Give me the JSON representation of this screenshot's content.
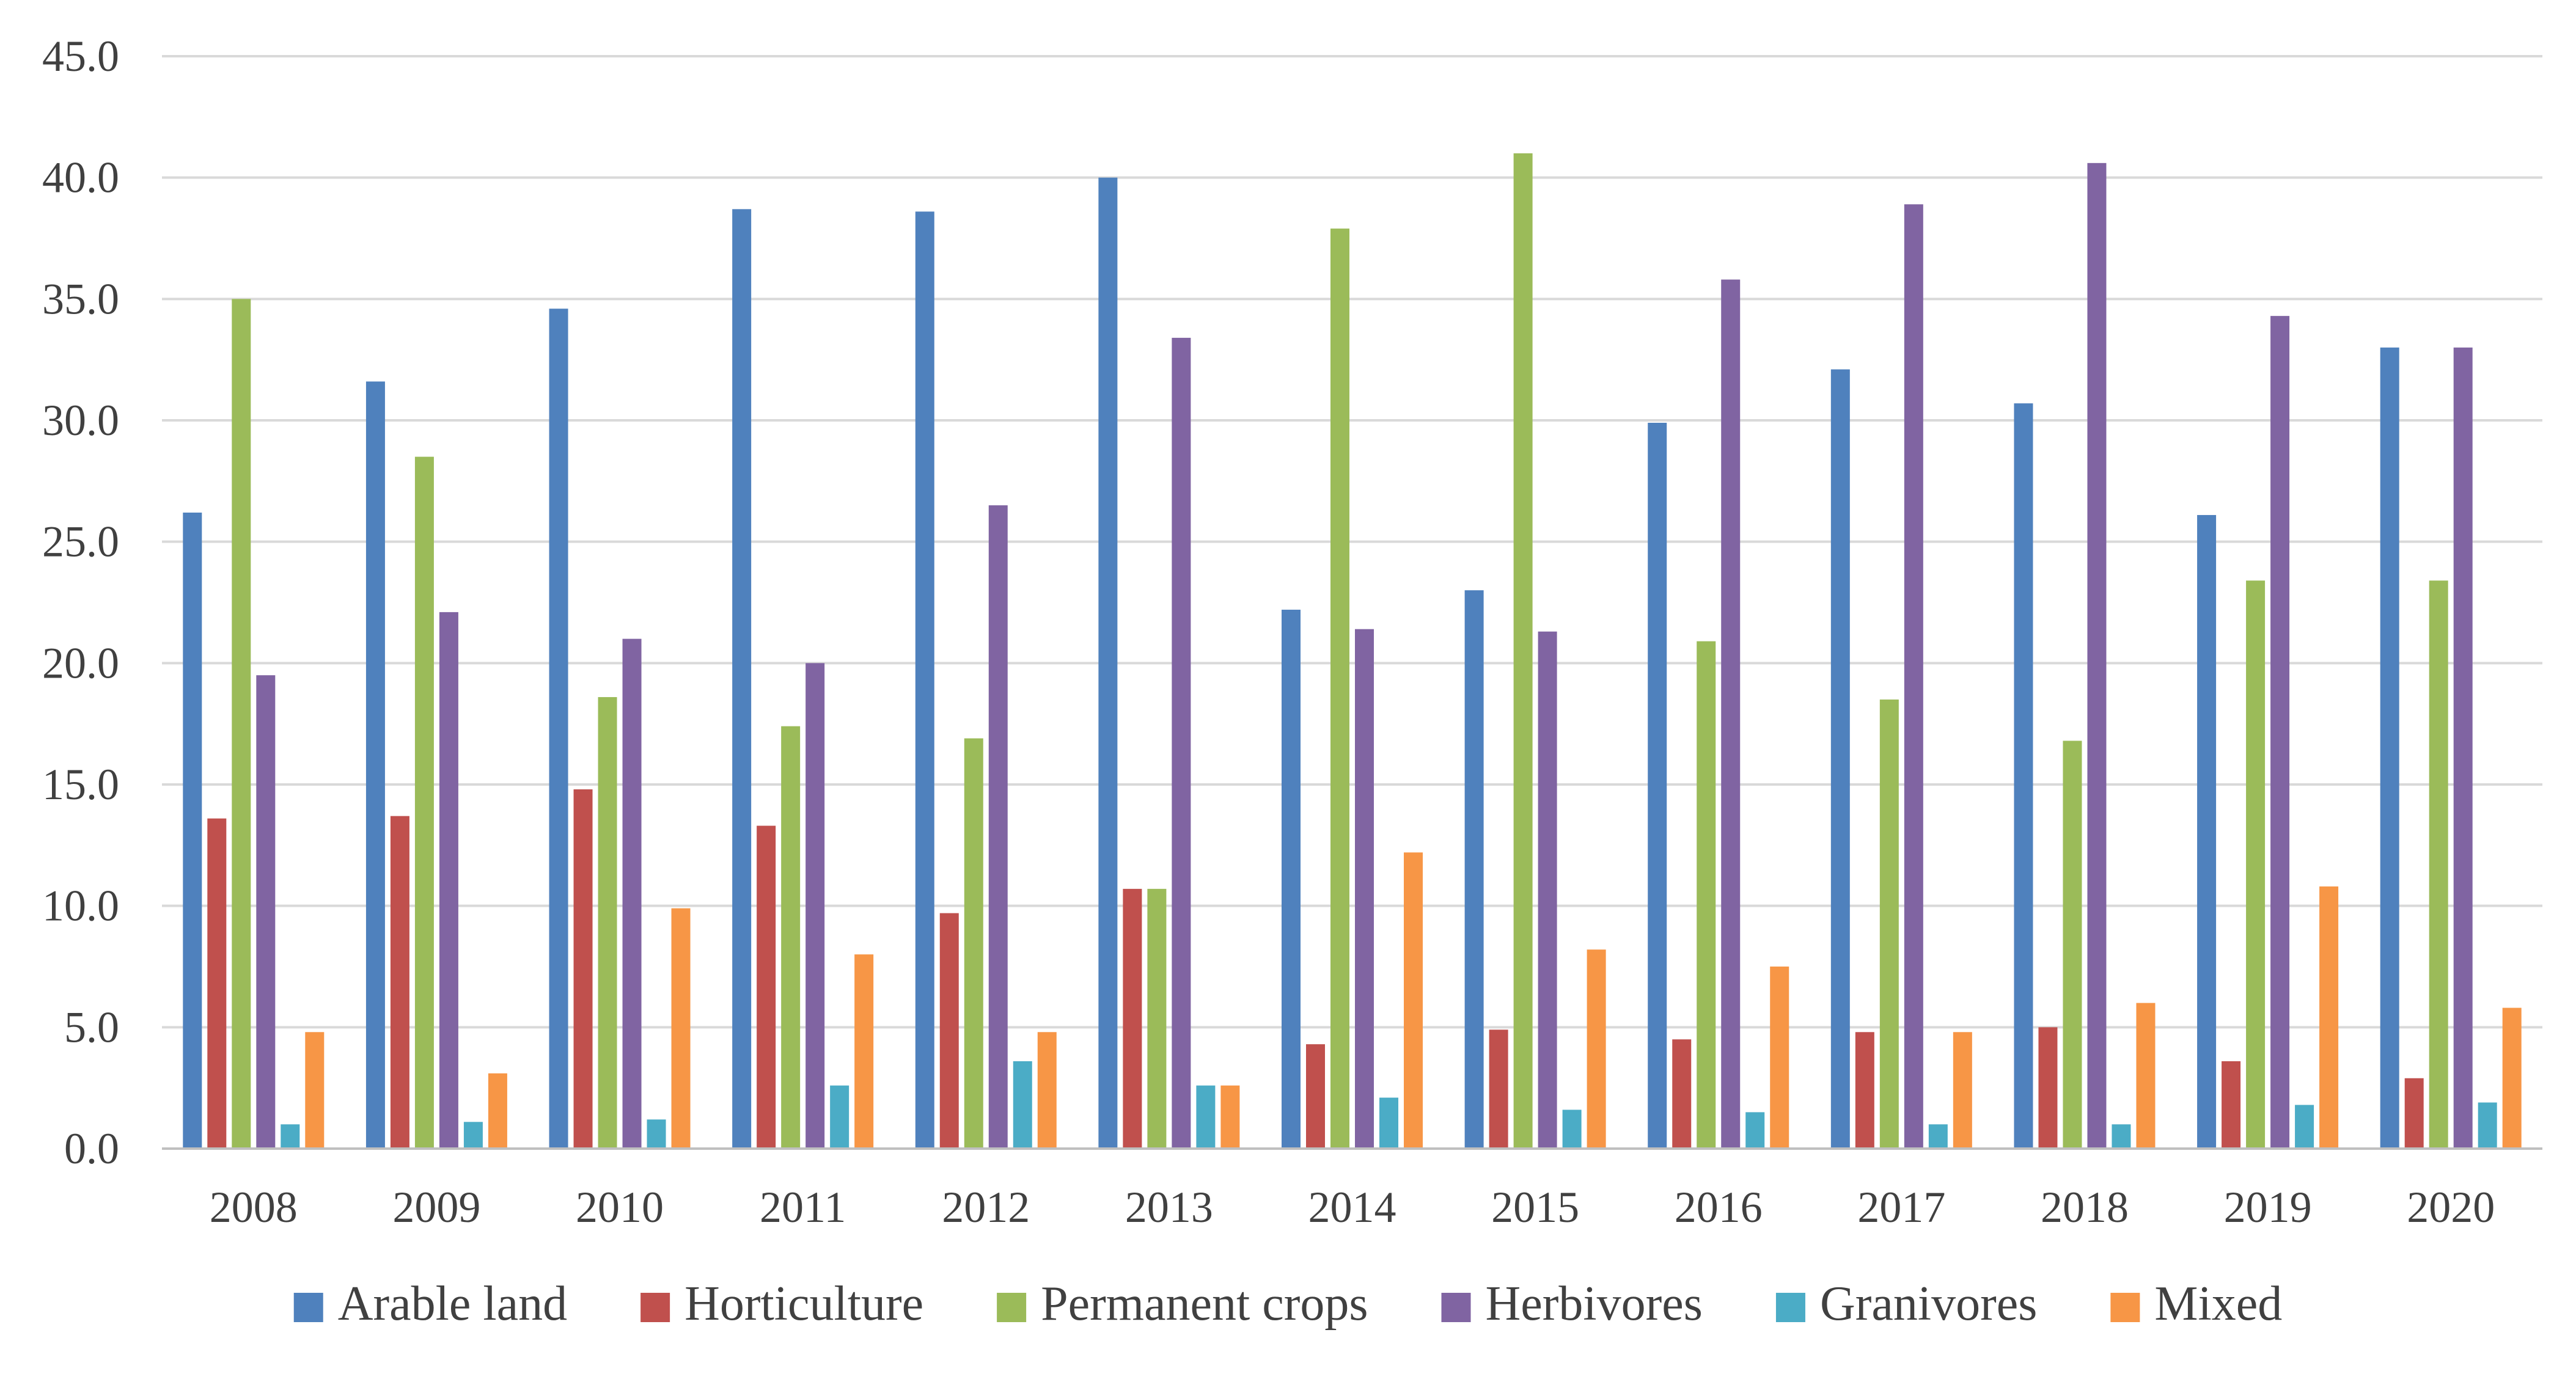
{
  "chart_data": {
    "type": "bar",
    "title": "",
    "xlabel": "",
    "ylabel": "",
    "ylim": [
      0,
      45
    ],
    "ytick_step": 5,
    "ytick_decimals": 1,
    "grid": true,
    "legend_position": "bottom",
    "categories": [
      "2008",
      "2009",
      "2010",
      "2011",
      "2012",
      "2013",
      "2014",
      "2015",
      "2016",
      "2017",
      "2018",
      "2019",
      "2020"
    ],
    "series": [
      {
        "name": "Arable land",
        "color": "#4f81bd",
        "values": [
          26.2,
          31.6,
          34.6,
          38.7,
          38.6,
          40.0,
          22.2,
          23.0,
          29.9,
          32.1,
          30.7,
          26.1,
          33.0
        ]
      },
      {
        "name": "Horticulture",
        "color": "#c0504d",
        "values": [
          13.6,
          13.7,
          14.8,
          13.3,
          9.7,
          10.7,
          4.3,
          4.9,
          4.5,
          4.8,
          5.0,
          3.6,
          2.9
        ]
      },
      {
        "name": "Permanent crops",
        "color": "#9bbb59",
        "values": [
          35.0,
          28.5,
          18.6,
          17.4,
          16.9,
          10.7,
          37.9,
          41.0,
          20.9,
          18.5,
          16.8,
          23.4,
          23.4
        ]
      },
      {
        "name": "Herbivores",
        "color": "#8064a2",
        "values": [
          19.5,
          22.1,
          21.0,
          20.0,
          26.5,
          33.4,
          21.4,
          21.3,
          35.8,
          38.9,
          40.6,
          34.3,
          33.0
        ]
      },
      {
        "name": "Granivores",
        "color": "#4bacc6",
        "values": [
          1.0,
          1.1,
          1.2,
          2.6,
          3.6,
          2.6,
          2.1,
          1.6,
          1.5,
          1.0,
          1.0,
          1.8,
          1.9
        ]
      },
      {
        "name": "Mixed",
        "color": "#f79646",
        "values": [
          4.8,
          3.1,
          9.9,
          8.0,
          4.8,
          2.6,
          12.2,
          8.2,
          7.5,
          4.8,
          6.0,
          10.8,
          5.8
        ]
      }
    ]
  }
}
